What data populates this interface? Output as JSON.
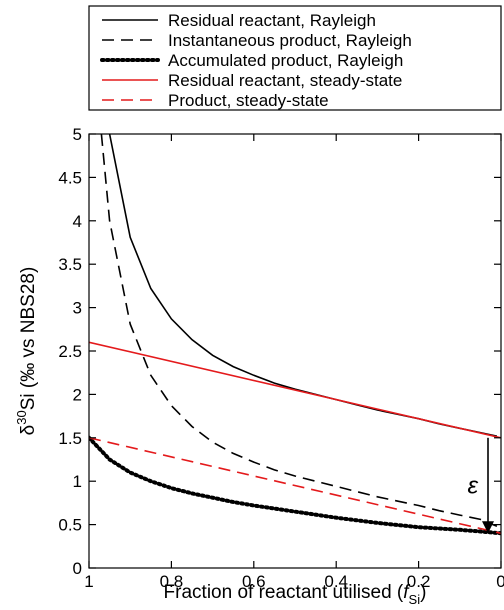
{
  "chart_data": {
    "type": "line",
    "title": "",
    "xlabel": {
      "prefix": "Fraction of reactant utilised (",
      "var": "f",
      "sub": "Si",
      "suffix": ")"
    },
    "ylabel": {
      "delta": "δ",
      "sup": "30",
      "rest": "Si (‰ vs NBS28)"
    },
    "xlim": [
      1,
      0
    ],
    "ylim": [
      0,
      5
    ],
    "xticks": [
      1,
      0.8,
      0.6,
      0.4,
      0.2,
      0
    ],
    "xtick_labels": [
      "1",
      "0.8",
      "0.6",
      "0.4",
      "0.2",
      "0"
    ],
    "yticks": [
      0,
      0.5,
      1,
      1.5,
      2,
      2.5,
      3,
      3.5,
      4,
      4.5,
      5
    ],
    "ytick_labels": [
      "0",
      "0.5",
      "1",
      "1.5",
      "2",
      "2.5",
      "3",
      "3.5",
      "4",
      "4.5",
      "5"
    ],
    "grid": false,
    "legend_position": "above plot",
    "series": [
      {
        "name": "Residual reactant, Rayleigh",
        "color": "#000000",
        "dash": "solid",
        "x": [
          0.95,
          0.9,
          0.85,
          0.8,
          0.75,
          0.7,
          0.65,
          0.6,
          0.55,
          0.5,
          0.45,
          0.4,
          0.35,
          0.3,
          0.25,
          0.2,
          0.15,
          0.1,
          0.05,
          0.01
        ],
        "y": [
          5.0,
          3.81,
          3.22,
          2.87,
          2.63,
          2.45,
          2.32,
          2.22,
          2.13,
          2.06,
          2.0,
          1.94,
          1.88,
          1.82,
          1.77,
          1.72,
          1.66,
          1.61,
          1.56,
          1.52
        ]
      },
      {
        "name": "Instantaneous product, Rayleigh",
        "color": "#000000",
        "dash": "long-dash",
        "x": [
          0.97,
          0.95,
          0.9,
          0.85,
          0.8,
          0.75,
          0.7,
          0.65,
          0.6,
          0.55,
          0.5,
          0.45,
          0.4,
          0.35,
          0.3,
          0.25,
          0.2,
          0.15,
          0.1,
          0.05,
          0.01
        ],
        "y": [
          5.0,
          4.0,
          2.81,
          2.22,
          1.87,
          1.63,
          1.45,
          1.32,
          1.22,
          1.13,
          1.06,
          1.0,
          0.94,
          0.88,
          0.82,
          0.77,
          0.72,
          0.66,
          0.61,
          0.56,
          0.48
        ]
      },
      {
        "name": "Accumulated product, Rayleigh",
        "color": "#000000",
        "dash": "dotted",
        "x": [
          1.0,
          0.95,
          0.9,
          0.85,
          0.8,
          0.75,
          0.7,
          0.65,
          0.6,
          0.5,
          0.4,
          0.3,
          0.2,
          0.1,
          0.05,
          0.0
        ],
        "y": [
          1.5,
          1.25,
          1.1,
          1.0,
          0.92,
          0.86,
          0.81,
          0.76,
          0.72,
          0.65,
          0.58,
          0.52,
          0.47,
          0.44,
          0.42,
          0.4
        ]
      },
      {
        "name": "Residual reactant, steady-state",
        "color": "#e41a1c",
        "dash": "solid",
        "x": [
          1.0,
          0.0
        ],
        "y": [
          2.6,
          1.5
        ]
      },
      {
        "name": "Product, steady-state",
        "color": "#e41a1c",
        "dash": "long-dash",
        "x": [
          1.0,
          0.0
        ],
        "y": [
          1.5,
          0.4
        ]
      }
    ],
    "annotations": [
      {
        "text": "ε",
        "arrow_x": 0.0,
        "arrow_from_y": 1.5,
        "arrow_to_y": 0.4
      }
    ]
  }
}
